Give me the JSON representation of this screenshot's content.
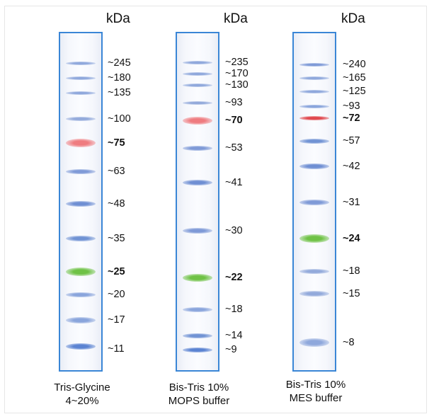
{
  "unit_label": "kDa",
  "lanes": [
    {
      "caption_line1": "Tris-Glycine",
      "caption_line2": "4~20%",
      "markers": [
        {
          "label": "~245",
          "color": "#8fa8dc",
          "bold": false
        },
        {
          "label": "~180",
          "color": "#8fa8dc",
          "bold": false
        },
        {
          "label": "~135",
          "color": "#8fa8dc",
          "bold": false
        },
        {
          "label": "~100",
          "color": "#93aadb",
          "bold": false
        },
        {
          "label": "~75",
          "color": "#ef7c80",
          "bold": true
        },
        {
          "label": "~63",
          "color": "#7f9ad7",
          "bold": false
        },
        {
          "label": "~48",
          "color": "#6f8fd3",
          "bold": false
        },
        {
          "label": "~35",
          "color": "#7193d4",
          "bold": false
        },
        {
          "label": "~25",
          "color": "#6fc246",
          "bold": true
        },
        {
          "label": "~20",
          "color": "#8aa5dc",
          "bold": false
        },
        {
          "label": "~17",
          "color": "#8aa5dc",
          "bold": false
        },
        {
          "label": "~11",
          "color": "#5b83d2",
          "bold": false
        }
      ]
    },
    {
      "caption_line1": "Bis-Tris 10%",
      "caption_line2": "MOPS buffer",
      "markers": [
        {
          "label": "~235",
          "color": "#8fa8dc",
          "bold": false
        },
        {
          "label": "~170",
          "color": "#8fa8dc",
          "bold": false
        },
        {
          "label": "~130",
          "color": "#8fa8dc",
          "bold": false
        },
        {
          "label": "~93",
          "color": "#93aadb",
          "bold": false
        },
        {
          "label": "~70",
          "color": "#ef7c80",
          "bold": true
        },
        {
          "label": "~53",
          "color": "#7f9ad7",
          "bold": false
        },
        {
          "label": "~41",
          "color": "#6f8fd3",
          "bold": false
        },
        {
          "label": "~30",
          "color": "#7f9ad7",
          "bold": false
        },
        {
          "label": "~22",
          "color": "#6fc246",
          "bold": true
        },
        {
          "label": "~18",
          "color": "#8aa5dc",
          "bold": false
        },
        {
          "label": "~14",
          "color": "#7193d4",
          "bold": false
        },
        {
          "label": "~9",
          "color": "#5b83d2",
          "bold": false
        }
      ]
    },
    {
      "caption_line1": "Bis-Tris 10%",
      "caption_line2": "MES buffer",
      "markers": [
        {
          "label": "~240",
          "color": "#7f9ad7",
          "bold": false
        },
        {
          "label": "~165",
          "color": "#8fa8dc",
          "bold": false
        },
        {
          "label": "~125",
          "color": "#8fa8dc",
          "bold": false
        },
        {
          "label": "~93",
          "color": "#8aa5dc",
          "bold": false
        },
        {
          "label": "~72",
          "color": "#e0474d",
          "bold": true
        },
        {
          "label": "~57",
          "color": "#7193d4",
          "bold": false
        },
        {
          "label": "~42",
          "color": "#6f8fd3",
          "bold": false
        },
        {
          "label": "~31",
          "color": "#7f9ad7",
          "bold": false
        },
        {
          "label": "~24",
          "color": "#6fc246",
          "bold": true
        },
        {
          "label": "~18",
          "color": "#93aadb",
          "bold": false
        },
        {
          "label": "~15",
          "color": "#93aadb",
          "bold": false
        },
        {
          "label": "~8",
          "color": "#8fa8dc",
          "bold": false
        }
      ]
    }
  ]
}
